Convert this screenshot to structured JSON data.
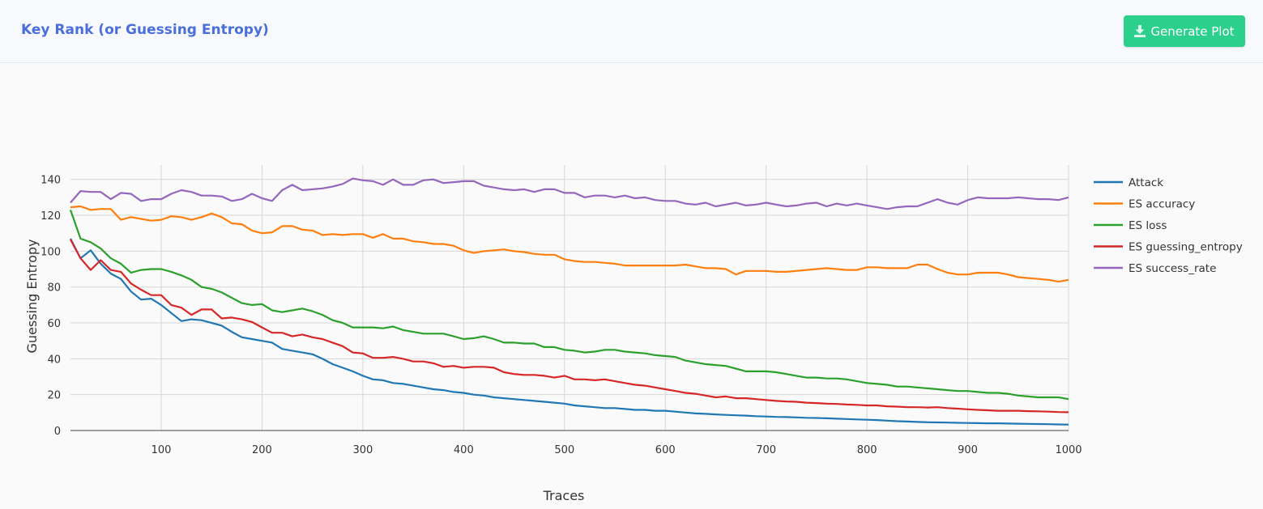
{
  "header": {
    "title": "Key Rank (or Guessing Entropy)",
    "button_label": "Generate Plot",
    "button_icon": "download-icon",
    "accent_color": "#4a6fdc",
    "button_color": "#2bd08d"
  },
  "chart_data": {
    "type": "line",
    "title": "",
    "xlabel": "Traces",
    "ylabel": "Guessing Entropy",
    "xlim": [
      10,
      1000
    ],
    "ylim": [
      0,
      148
    ],
    "xticks": [
      100,
      200,
      300,
      400,
      500,
      600,
      700,
      800,
      900,
      1000
    ],
    "yticks": [
      0,
      20,
      40,
      60,
      80,
      100,
      120,
      140
    ],
    "grid": true,
    "legend_position": "right",
    "x": [
      10,
      20,
      30,
      40,
      50,
      60,
      70,
      80,
      90,
      100,
      110,
      120,
      130,
      140,
      150,
      160,
      170,
      180,
      190,
      200,
      210,
      220,
      230,
      240,
      250,
      260,
      270,
      280,
      290,
      300,
      310,
      320,
      330,
      340,
      350,
      360,
      370,
      380,
      390,
      400,
      410,
      420,
      430,
      440,
      450,
      460,
      470,
      480,
      490,
      500,
      510,
      520,
      530,
      540,
      550,
      560,
      570,
      580,
      590,
      600,
      610,
      620,
      630,
      640,
      650,
      660,
      670,
      680,
      690,
      700,
      710,
      720,
      730,
      740,
      750,
      760,
      770,
      780,
      790,
      800,
      810,
      820,
      830,
      840,
      850,
      860,
      870,
      880,
      890,
      900,
      910,
      920,
      930,
      940,
      950,
      960,
      970,
      980,
      990,
      1000
    ],
    "series": [
      {
        "name": "Attack",
        "color": "#1f77b4",
        "values": [
          107,
          96,
          100.5,
          93,
          87.5,
          84.5,
          77.5,
          73,
          73.5,
          70,
          65.5,
          61,
          62,
          61.5,
          60,
          58.5,
          55,
          52,
          51,
          50,
          49,
          45.5,
          44.5,
          43.5,
          42.5,
          40,
          37,
          35,
          33,
          30.5,
          28.5,
          28,
          26.5,
          26,
          25,
          24,
          23,
          22.5,
          21.5,
          21,
          20,
          19.5,
          18.5,
          18,
          17.5,
          17,
          16.5,
          16,
          15.5,
          15,
          14,
          13.5,
          13,
          12.5,
          12.5,
          12,
          11.5,
          11.5,
          11,
          11,
          10.5,
          10,
          9.5,
          9.3,
          9,
          8.7,
          8.5,
          8.3,
          8,
          7.8,
          7.6,
          7.5,
          7.3,
          7.1,
          7,
          6.8,
          6.6,
          6.4,
          6.2,
          6,
          5.8,
          5.5,
          5.2,
          5,
          4.8,
          4.6,
          4.5,
          4.4,
          4.3,
          4.2,
          4.1,
          4,
          4,
          3.9,
          3.8,
          3.7,
          3.6,
          3.5,
          3.4,
          3.3
        ]
      },
      {
        "name": "ES accuracy",
        "color": "#ff7f0e",
        "values": [
          124.5,
          125,
          123,
          123.5,
          123.5,
          117.5,
          119,
          118,
          117,
          117.5,
          119.5,
          119,
          117.5,
          119,
          121,
          119,
          115.5,
          115,
          111.5,
          110,
          110.5,
          114,
          114,
          112,
          111.5,
          109,
          109.5,
          109,
          109.5,
          109.5,
          107.5,
          109.5,
          107,
          107,
          105.5,
          105,
          104,
          104,
          103,
          100.5,
          99,
          100,
          100.5,
          101,
          100,
          99.5,
          98.5,
          98,
          98,
          95.5,
          94.5,
          94,
          94,
          93.5,
          93,
          92,
          92,
          92,
          92,
          92,
          92,
          92.5,
          91.5,
          90.5,
          90.5,
          90,
          87,
          89,
          89,
          89,
          88.5,
          88.5,
          89,
          89.5,
          90,
          90.5,
          90,
          89.5,
          89.5,
          91,
          91,
          90.5,
          90.5,
          90.5,
          92.5,
          92.5,
          90,
          88,
          87,
          87,
          88,
          88,
          88,
          87,
          85.5,
          85,
          84.5,
          84,
          83,
          84
        ]
      },
      {
        "name": "ES loss",
        "color": "#2ca02c",
        "values": [
          123,
          107,
          105,
          101.5,
          96,
          93,
          88,
          89.5,
          90,
          90,
          88.5,
          86.5,
          84,
          80,
          79,
          77,
          74,
          71,
          70,
          70.5,
          67,
          66,
          67,
          68,
          66.5,
          64.5,
          61.5,
          60,
          57.5,
          57.5,
          57.5,
          57,
          58,
          56,
          55,
          54,
          54,
          54,
          52.5,
          51,
          51.5,
          52.5,
          51,
          49,
          49,
          48.5,
          48.5,
          46.5,
          46.5,
          45,
          44.5,
          43.5,
          44,
          45,
          45,
          44,
          43.5,
          43,
          42,
          41.5,
          41,
          39,
          38,
          37,
          36.5,
          36,
          34.5,
          33,
          33,
          33,
          32.5,
          31.5,
          30.5,
          29.5,
          29.5,
          29,
          29,
          28.5,
          27.5,
          26.5,
          26,
          25.5,
          24.5,
          24.5,
          24,
          23.5,
          23,
          22.5,
          22,
          22,
          21.5,
          21,
          21,
          20.5,
          19.5,
          19,
          18.5,
          18.5,
          18.5,
          17.5
        ]
      },
      {
        "name": "ES guessing_entropy",
        "color": "#d62728",
        "values": [
          106.5,
          96,
          89.5,
          95,
          89.5,
          88.5,
          82,
          78.5,
          75.5,
          75.5,
          70,
          68.5,
          64.5,
          67.5,
          67.5,
          62.5,
          63,
          62,
          60.5,
          57.5,
          54.5,
          54.5,
          52.5,
          53.5,
          52,
          51,
          49,
          47,
          43.5,
          43,
          40.5,
          40.5,
          41,
          40,
          38.5,
          38.5,
          37.5,
          35.5,
          36,
          35,
          35.5,
          35.5,
          35,
          32.5,
          31.5,
          31,
          31,
          30.5,
          29.5,
          30.5,
          28.5,
          28.5,
          28,
          28.5,
          27.5,
          26.5,
          25.5,
          25,
          24,
          23,
          22,
          21,
          20.5,
          19.5,
          18.5,
          19,
          18,
          18,
          17.5,
          17,
          16.5,
          16.2,
          16,
          15.5,
          15.3,
          15,
          14.8,
          14.5,
          14.3,
          14,
          14,
          13.5,
          13.3,
          13,
          13,
          12.8,
          13,
          12.5,
          12.2,
          11.8,
          11.5,
          11.3,
          11,
          11,
          11,
          10.8,
          10.7,
          10.5,
          10.3,
          10.2
        ]
      },
      {
        "name": "ES success_rate",
        "color": "#9467bd",
        "values": [
          127,
          133.5,
          133,
          133,
          129,
          132.5,
          132,
          128,
          129,
          129,
          132,
          134,
          133,
          131,
          131,
          130.5,
          128,
          129,
          132,
          129.5,
          128,
          134,
          137,
          134,
          134.5,
          135,
          136,
          137.5,
          140.5,
          139.5,
          139,
          137,
          140,
          137,
          137,
          139.5,
          140,
          138,
          138.5,
          139,
          139,
          136.5,
          135.5,
          134.5,
          134,
          134.5,
          133,
          134.5,
          134.5,
          132.5,
          132.5,
          130,
          131,
          131,
          130,
          131,
          129.5,
          130,
          128.5,
          128,
          128,
          126.5,
          126,
          127,
          125,
          126,
          127,
          125.5,
          126,
          127,
          126,
          125,
          125.5,
          126.5,
          127,
          125,
          126.5,
          125.5,
          126.5,
          125.5,
          124.5,
          123.5,
          124.5,
          125,
          125,
          127,
          129,
          127,
          126,
          128.5,
          130,
          129.5,
          129.5,
          129.5,
          130,
          129.5,
          129,
          129,
          128.5,
          130
        ]
      }
    ]
  }
}
